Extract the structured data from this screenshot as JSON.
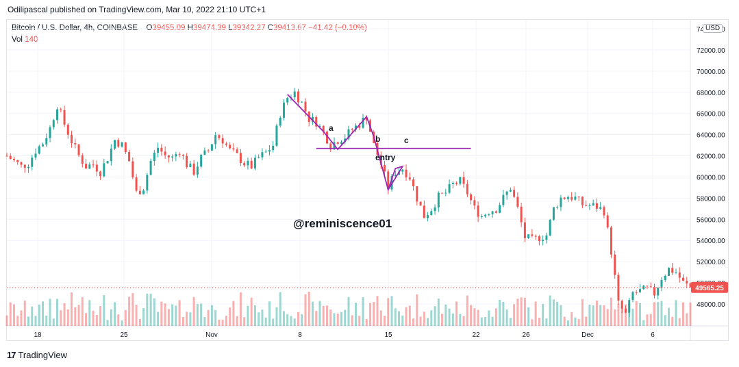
{
  "header": {
    "published": "Odilipascal published on TradingView.com, Mar 10, 2022 21:10 UTC+1"
  },
  "legend": {
    "symbol": "Bitcoin / U.S. Dollar, 4h, COINBASE",
    "o_label": "O",
    "o_value": "39455.09",
    "h_label": "H",
    "h_value": "39474.39",
    "l_label": "L",
    "l_value": "39342.27",
    "c_label": "C",
    "c_value": "39413.67",
    "change": "−41.42 (−0.10%)",
    "vol_label": "Vol",
    "vol_value": "140"
  },
  "currency_button": "USD",
  "footer": {
    "brand": "TradingView"
  },
  "colors": {
    "up": "#26a69a",
    "down": "#ef5350",
    "annotation": "#9c27b0",
    "price_tag": "#ef5350"
  },
  "chart_data": {
    "type": "candlestick",
    "price_axis": {
      "ticks": [
        "74000.00",
        "72000.00",
        "70000.00",
        "68000.00",
        "66000.00",
        "64000.00",
        "62000.00",
        "60000.00",
        "58000.00",
        "56000.00",
        "54000.00",
        "52000.00",
        "50000.00",
        "48000.00"
      ],
      "ylim": [
        46000,
        74000
      ]
    },
    "time_axis": {
      "ticks": [
        "18",
        "25",
        "Nov",
        "8",
        "15",
        "22",
        "26",
        "Dec",
        "6"
      ]
    },
    "last_price": "49565.25",
    "price_path": [
      [
        0,
        62000
      ],
      [
        2,
        61500
      ],
      [
        4,
        61000
      ],
      [
        6,
        61300
      ],
      [
        8,
        62500
      ],
      [
        10,
        63200
      ],
      [
        12,
        64600
      ],
      [
        14,
        66800
      ],
      [
        16,
        65000
      ],
      [
        18,
        63400
      ],
      [
        20,
        62000
      ],
      [
        22,
        61000
      ],
      [
        24,
        61200
      ],
      [
        26,
        60500
      ],
      [
        28,
        61800
      ],
      [
        30,
        63500
      ],
      [
        32,
        63000
      ],
      [
        34,
        61500
      ],
      [
        36,
        58500
      ],
      [
        38,
        59000
      ],
      [
        40,
        61500
      ],
      [
        42,
        62800
      ],
      [
        44,
        62000
      ],
      [
        46,
        61800
      ],
      [
        48,
        62500
      ],
      [
        50,
        61200
      ],
      [
        52,
        60500
      ],
      [
        54,
        61800
      ],
      [
        56,
        62500
      ],
      [
        58,
        64000
      ],
      [
        60,
        63500
      ],
      [
        62,
        62500
      ],
      [
        64,
        62000
      ],
      [
        66,
        61300
      ],
      [
        68,
        61000
      ],
      [
        70,
        61800
      ],
      [
        72,
        62300
      ],
      [
        74,
        63000
      ],
      [
        76,
        66000
      ],
      [
        78,
        67500
      ],
      [
        80,
        68000
      ],
      [
        82,
        67000
      ],
      [
        84,
        65500
      ],
      [
        86,
        65200
      ],
      [
        88,
        64200
      ],
      [
        90,
        63000
      ],
      [
        92,
        63500
      ],
      [
        94,
        63800
      ],
      [
        96,
        64500
      ],
      [
        98,
        65000
      ],
      [
        100,
        65700
      ],
      [
        102,
        63000
      ],
      [
        104,
        61200
      ],
      [
        106,
        59000
      ],
      [
        108,
        60500
      ],
      [
        110,
        60800
      ],
      [
        112,
        60000
      ],
      [
        114,
        58000
      ],
      [
        116,
        56300
      ],
      [
        118,
        57000
      ],
      [
        120,
        58100
      ],
      [
        122,
        58500
      ],
      [
        124,
        59300
      ],
      [
        126,
        59600
      ],
      [
        128,
        58500
      ],
      [
        130,
        57000
      ],
      [
        132,
        56300
      ],
      [
        134,
        56800
      ],
      [
        136,
        57000
      ],
      [
        138,
        58000
      ],
      [
        140,
        59000
      ],
      [
        142,
        57000
      ],
      [
        144,
        54300
      ],
      [
        146,
        54000
      ],
      [
        148,
        54300
      ],
      [
        150,
        54500
      ],
      [
        152,
        57000
      ],
      [
        154,
        58000
      ],
      [
        156,
        58200
      ],
      [
        158,
        58000
      ],
      [
        160,
        57400
      ],
      [
        162,
        57300
      ],
      [
        164,
        57200
      ],
      [
        166,
        56800
      ],
      [
        168,
        53000
      ],
      [
        170,
        48000
      ],
      [
        172,
        47000
      ],
      [
        174,
        49000
      ],
      [
        176,
        49200
      ],
      [
        178,
        49400
      ],
      [
        180,
        49000
      ],
      [
        182,
        50500
      ],
      [
        184,
        51300
      ],
      [
        186,
        51000
      ],
      [
        188,
        50000
      ],
      [
        190,
        49565
      ]
    ],
    "annotations": {
      "labels": {
        "a": "a",
        "b": "b",
        "c": "c",
        "entry": "entry"
      },
      "entry_level": 62700
    },
    "watermark": "@reminiscence01"
  }
}
